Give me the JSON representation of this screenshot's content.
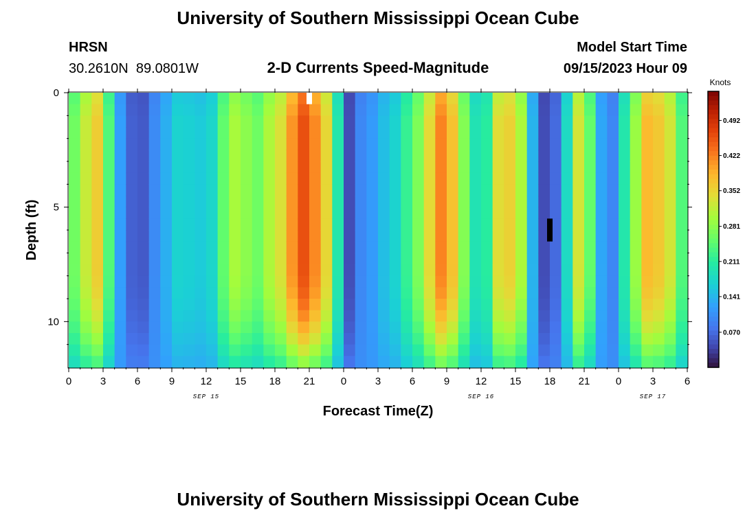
{
  "header": {
    "title": "University of Southern Mississippi Ocean Cube",
    "station_name": "HRSN",
    "station_coords": "30.2610N  89.0801W",
    "plot_title": "2-D Currents Speed-Magnitude",
    "model_label": "Model Start Time",
    "model_time": "09/15/2023 Hour 09"
  },
  "footer": {
    "title": "University of Southern Mississippi Ocean Cube"
  },
  "chart_data": {
    "type": "heatmap",
    "title": "2-D Currents Speed-Magnitude",
    "xlabel": "Forecast Time(Z)",
    "ylabel": "Depth (ft)",
    "x_range_hours": [
      0,
      54
    ],
    "y_range_ft": [
      0,
      12
    ],
    "x_ticks": [
      {
        "hour": 0,
        "label": "0"
      },
      {
        "hour": 3,
        "label": "3"
      },
      {
        "hour": 6,
        "label": "6"
      },
      {
        "hour": 9,
        "label": "9"
      },
      {
        "hour": 12,
        "label": "12"
      },
      {
        "hour": 15,
        "label": "15"
      },
      {
        "hour": 18,
        "label": "18"
      },
      {
        "hour": 21,
        "label": "21"
      },
      {
        "hour": 24,
        "label": "0"
      },
      {
        "hour": 27,
        "label": "3"
      },
      {
        "hour": 30,
        "label": "6"
      },
      {
        "hour": 33,
        "label": "9"
      },
      {
        "hour": 36,
        "label": "12"
      },
      {
        "hour": 39,
        "label": "15"
      },
      {
        "hour": 42,
        "label": "18"
      },
      {
        "hour": 45,
        "label": "21"
      },
      {
        "hour": 48,
        "label": "0"
      },
      {
        "hour": 51,
        "label": "3"
      },
      {
        "hour": 54,
        "label": "6"
      }
    ],
    "y_ticks": [
      {
        "depth": 0,
        "label": "0"
      },
      {
        "depth": 5,
        "label": "5"
      },
      {
        "depth": 10,
        "label": "10"
      }
    ],
    "date_labels": [
      {
        "hour": 12,
        "label": "SEP 15"
      },
      {
        "hour": 36,
        "label": "SEP 16"
      },
      {
        "hour": 51,
        "label": "SEP 17"
      }
    ],
    "colorbar": {
      "label": "Knots",
      "min": 0.0,
      "max": 0.55,
      "ticks": [
        "0.070",
        "0.141",
        "0.211",
        "0.281",
        "0.352",
        "0.422",
        "0.492"
      ]
    },
    "speed_profile": {
      "hours": [
        0,
        2.5,
        4.5,
        6,
        7.5,
        9.5,
        12,
        14.5,
        16.5,
        18.2,
        20.5,
        22,
        23.5,
        24.2,
        26,
        28.5,
        30.5,
        32.5,
        36,
        38,
        39.7,
        41,
        42,
        43.5,
        44.5,
        45.8,
        47,
        48.5,
        50.5,
        52,
        53.5,
        54.3
      ],
      "speeds": [
        0.25,
        0.36,
        0.12,
        0.04,
        0.1,
        0.17,
        0.16,
        0.3,
        0.26,
        0.33,
        0.46,
        0.4,
        0.2,
        0.04,
        0.11,
        0.17,
        0.27,
        0.42,
        0.18,
        0.37,
        0.3,
        0.06,
        0.03,
        0.18,
        0.33,
        0.24,
        0.06,
        0.2,
        0.38,
        0.36,
        0.24,
        0.08
      ],
      "surface_factor": 0.93,
      "bottom_floor": 0.06,
      "bottom_gain": 0.45
    },
    "markers": [
      {
        "hour": 21.0,
        "depth_start": 0.0,
        "depth_end": 0.5,
        "color": "#ffffff"
      },
      {
        "hour": 42.0,
        "depth_start": 5.5,
        "depth_end": 6.5,
        "color": "#000000"
      }
    ]
  }
}
